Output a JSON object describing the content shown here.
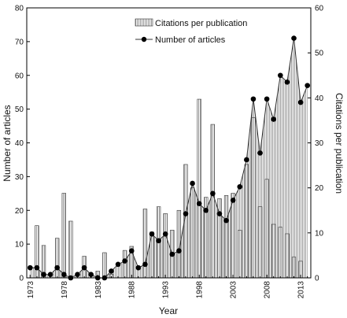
{
  "chart_data": {
    "type": "bar+line",
    "xlabel": "Year",
    "ylabel_left": "Number of articles",
    "ylabel_right": "Citations per publication",
    "ylim_left": [
      0,
      80
    ],
    "ylim_right": [
      0,
      60
    ],
    "yticks_left": [
      "0",
      "10",
      "20",
      "30",
      "40",
      "50",
      "60",
      "70",
      "80"
    ],
    "yticks_right": [
      "0",
      "10",
      "20",
      "30",
      "40",
      "50",
      "60"
    ],
    "xticks": [
      "1973",
      "1978",
      "1983",
      "1988",
      "1993",
      "1998",
      "2003",
      "2008",
      "2013"
    ],
    "x": [
      1973,
      1974,
      1975,
      1976,
      1977,
      1978,
      1979,
      1980,
      1981,
      1982,
      1983,
      1984,
      1985,
      1986,
      1987,
      1988,
      1989,
      1990,
      1991,
      1992,
      1993,
      1994,
      1995,
      1996,
      1997,
      1998,
      1999,
      2000,
      2001,
      2002,
      2003,
      2004,
      2005,
      2006,
      2007,
      2008,
      2009,
      2010,
      2011,
      2012,
      2013,
      2014
    ],
    "legend": {
      "bars": "Citations per publication",
      "line": "Number of articles",
      "position": "top-center"
    },
    "series": [
      {
        "name": "Citations per publication",
        "kind": "bar",
        "axis": "right",
        "values": [
          0,
          11.6,
          7.2,
          0,
          8.8,
          18.8,
          12.6,
          0,
          4.8,
          0,
          1.5,
          5.6,
          0.8,
          0,
          6.1,
          7,
          0,
          15.3,
          10.2,
          15.8,
          14.3,
          10.6,
          15,
          25.2,
          20,
          39.7,
          17.9,
          34.1,
          17.6,
          18.3,
          18.8,
          10.6,
          25.2,
          35.6,
          15.8,
          21.9,
          11.9,
          11.3,
          9.8,
          4.6,
          3.7,
          0
        ]
      },
      {
        "name": "Number of articles",
        "kind": "line",
        "axis": "left",
        "values": [
          3,
          3,
          1,
          1,
          3,
          1,
          0,
          1,
          3,
          1,
          0,
          0,
          2,
          4,
          5,
          8,
          3,
          4,
          13,
          11,
          13,
          7,
          8,
          19,
          28,
          22,
          20,
          25,
          19,
          17,
          23,
          27,
          35,
          53,
          37,
          53,
          47,
          60,
          58,
          71,
          52,
          57
        ]
      }
    ]
  }
}
